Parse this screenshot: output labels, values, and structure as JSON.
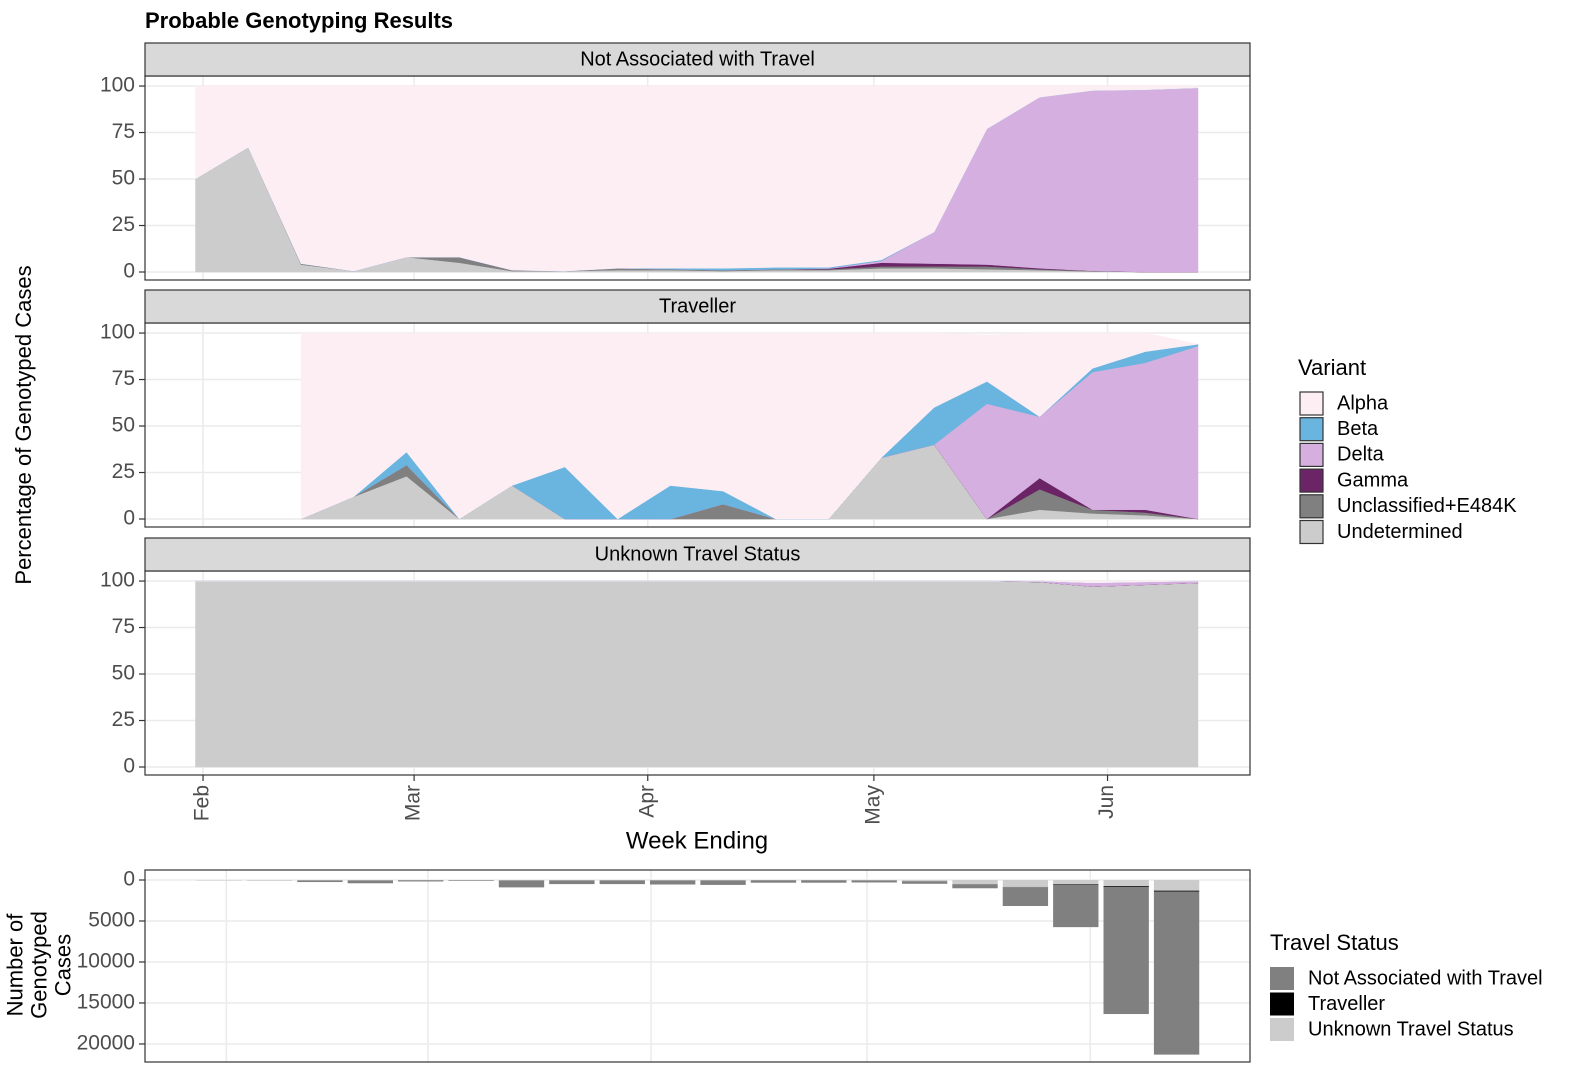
{
  "chart_data": [
    {
      "type": "area",
      "title": "Probable Genotyping Results",
      "xlabel": "Week Ending",
      "ylabel": "Percentage of Genotyped Cases",
      "legend_title": "Variant",
      "grid": true,
      "x": [
        31,
        38,
        45,
        52,
        59,
        66,
        73,
        80,
        87,
        94,
        101,
        108,
        115,
        122,
        129,
        136,
        143,
        150,
        157,
        164
      ],
      "xlim": [
        24.3,
        170.9
      ],
      "xticks": [
        {
          "value": 32,
          "label": "Feb"
        },
        {
          "value": 60,
          "label": "Mar"
        },
        {
          "value": 91,
          "label": "Apr"
        },
        {
          "value": 121,
          "label": "May"
        },
        {
          "value": 152,
          "label": "Jun"
        }
      ],
      "ylim": [
        -4.3,
        105.4
      ],
      "yticks": [
        0,
        25,
        50,
        75,
        100
      ],
      "panels": [
        {
          "title": "Not Associated with Travel",
          "series": [
            {
              "name": "Alpha",
              "color": "#fdeef4",
              "values": [
                50,
                33,
                95.5,
                99.5,
                92,
                92,
                99,
                99.5,
                98,
                98,
                98,
                97.5,
                97.5,
                93.5,
                78.5,
                23,
                6,
                2.4,
                2,
                1
              ]
            },
            {
              "name": "Beta",
              "color": "#6ab4e0",
              "values": [
                0,
                0,
                0,
                0,
                0,
                0,
                0,
                0,
                0,
                0.5,
                1,
                1,
                0.5,
                0.5,
                0,
                0,
                0,
                0,
                0,
                0
              ]
            },
            {
              "name": "Delta",
              "color": "#d5afdf",
              "values": [
                0,
                0,
                0,
                0,
                0,
                0,
                0,
                0,
                0,
                0,
                0,
                0,
                0.2,
                1,
                17,
                73,
                92,
                97,
                98,
                99
              ]
            },
            {
              "name": "Gamma",
              "color": "#6b2466",
              "values": [
                0,
                0,
                0,
                0,
                0,
                0,
                0,
                0,
                0,
                0,
                0,
                0,
                0.3,
                2,
                1.5,
                1,
                0.5,
                0,
                0,
                0
              ]
            },
            {
              "name": "Unclassified+E484K",
              "color": "#808080",
              "values": [
                0,
                0,
                0.5,
                0,
                0,
                3,
                0.5,
                0,
                1,
                0.5,
                0.5,
                0.5,
                0.5,
                1,
                1,
                1.5,
                0.5,
                0.3,
                0,
                0
              ]
            },
            {
              "name": "Undetermined",
              "color": "#cccccc",
              "values": [
                50,
                67,
                4,
                0.5,
                8,
                5,
                0.5,
                0.5,
                1,
                1,
                0.5,
                1,
                1,
                2,
                2,
                1.5,
                1,
                0.3,
                0,
                0
              ]
            }
          ]
        },
        {
          "title": "Traveller",
          "series": [
            {
              "name": "Alpha",
              "color": "#fdeef4",
              "values": [
                null,
                null,
                100,
                88,
                64,
                100,
                82,
                72,
                100,
                82,
                85,
                100,
                100,
                67,
                40,
                25,
                45,
                19,
                10,
                0
              ]
            },
            {
              "name": "Beta",
              "color": "#6ab4e0",
              "values": [
                null,
                null,
                0,
                0,
                7,
                0,
                0,
                28,
                0,
                18,
                7,
                0,
                0,
                0,
                20,
                12,
                0,
                2,
                6,
                1
              ]
            },
            {
              "name": "Delta",
              "color": "#d5afdf",
              "values": [
                null,
                null,
                0,
                0,
                0,
                0,
                0,
                0,
                0,
                0,
                0,
                0,
                0,
                0,
                0,
                62,
                33,
                74,
                79,
                93
              ]
            },
            {
              "name": "Gamma",
              "color": "#6b2466",
              "values": [
                null,
                null,
                0,
                0,
                0,
                0,
                0,
                0,
                0,
                0,
                0,
                0,
                0,
                0,
                0,
                0,
                6,
                0,
                1.5,
                0
              ]
            },
            {
              "name": "Unclassified+E484K",
              "color": "#808080",
              "values": [
                null,
                null,
                0,
                0,
                6,
                0,
                0,
                0,
                0,
                0,
                8,
                0,
                0,
                0,
                0,
                0,
                11,
                2,
                1.5,
                0
              ]
            },
            {
              "name": "Undetermined",
              "color": "#cccccc",
              "values": [
                null,
                null,
                0,
                12,
                23,
                0,
                18,
                0,
                0,
                0,
                0,
                0,
                0,
                33,
                40,
                0,
                5,
                3,
                2,
                0
              ]
            }
          ]
        },
        {
          "title": "Unknown Travel Status",
          "series": [
            {
              "name": "Alpha",
              "color": "#fdeef4",
              "values": [
                0,
                0,
                0,
                0,
                0,
                0,
                0,
                0,
                0,
                0,
                0,
                0,
                0,
                0,
                0,
                0,
                0,
                1,
                0.5,
                0
              ]
            },
            {
              "name": "Beta",
              "color": "#6ab4e0",
              "values": [
                0,
                0,
                0,
                0,
                0,
                0,
                0,
                0,
                0,
                0,
                0,
                0,
                0,
                0,
                0,
                0,
                0,
                0,
                0,
                0
              ]
            },
            {
              "name": "Delta",
              "color": "#d5afdf",
              "values": [
                0,
                0,
                0,
                0,
                0,
                0,
                0,
                0,
                0,
                0,
                0,
                0,
                0,
                0,
                0,
                0,
                0.5,
                2,
                1.5,
                1
              ]
            },
            {
              "name": "Gamma",
              "color": "#6b2466",
              "values": [
                0,
                0,
                0,
                0,
                0,
                0,
                0,
                0,
                0,
                0,
                0,
                0,
                0,
                0,
                0,
                0,
                0,
                0,
                0,
                0
              ]
            },
            {
              "name": "Unclassified+E484K",
              "color": "#808080",
              "values": [
                0,
                0,
                0,
                0,
                0,
                0,
                0,
                0,
                0,
                0,
                0,
                0,
                0,
                0,
                0,
                0,
                0,
                0,
                0,
                0
              ]
            },
            {
              "name": "Undetermined",
              "color": "#cccccc",
              "values": [
                100,
                100,
                100,
                100,
                100,
                100,
                100,
                100,
                100,
                100,
                100,
                100,
                100,
                100,
                100,
                100,
                99.5,
                97,
                98,
                99
              ]
            }
          ]
        }
      ]
    },
    {
      "type": "bar",
      "ylabel": "Number of Genotyped Cases",
      "legend_title": "Travel Status",
      "grid": true,
      "x": [
        31,
        38,
        45,
        52,
        59,
        66,
        73,
        80,
        87,
        94,
        101,
        108,
        115,
        122,
        129,
        136,
        143,
        150,
        157,
        164
      ],
      "xlim": [
        20.7,
        174.2
      ],
      "xticks": [
        32,
        60,
        91,
        121,
        152
      ],
      "ylim": [
        -1220,
        22200
      ],
      "y_reversed": true,
      "yticks": [
        0,
        5000,
        10000,
        15000,
        20000
      ],
      "series": [
        {
          "name": "Not Associated with Travel",
          "color": "#808080",
          "values": [
            20,
            30,
            200,
            350,
            150,
            80,
            850,
            450,
            450,
            500,
            550,
            300,
            300,
            250,
            300,
            500,
            2300,
            5200,
            15500,
            19900
          ]
        },
        {
          "name": "Traveller",
          "color": "#000000",
          "values": [
            0,
            0,
            0,
            0,
            0,
            0,
            0,
            0,
            0,
            0,
            0,
            0,
            0,
            0,
            10,
            10,
            20,
            50,
            100,
            100
          ]
        },
        {
          "name": "Unknown Travel Status",
          "color": "#cccccc",
          "values": [
            10,
            10,
            50,
            50,
            30,
            20,
            50,
            50,
            50,
            50,
            50,
            30,
            30,
            50,
            150,
            500,
            850,
            500,
            750,
            1300
          ]
        }
      ]
    }
  ]
}
